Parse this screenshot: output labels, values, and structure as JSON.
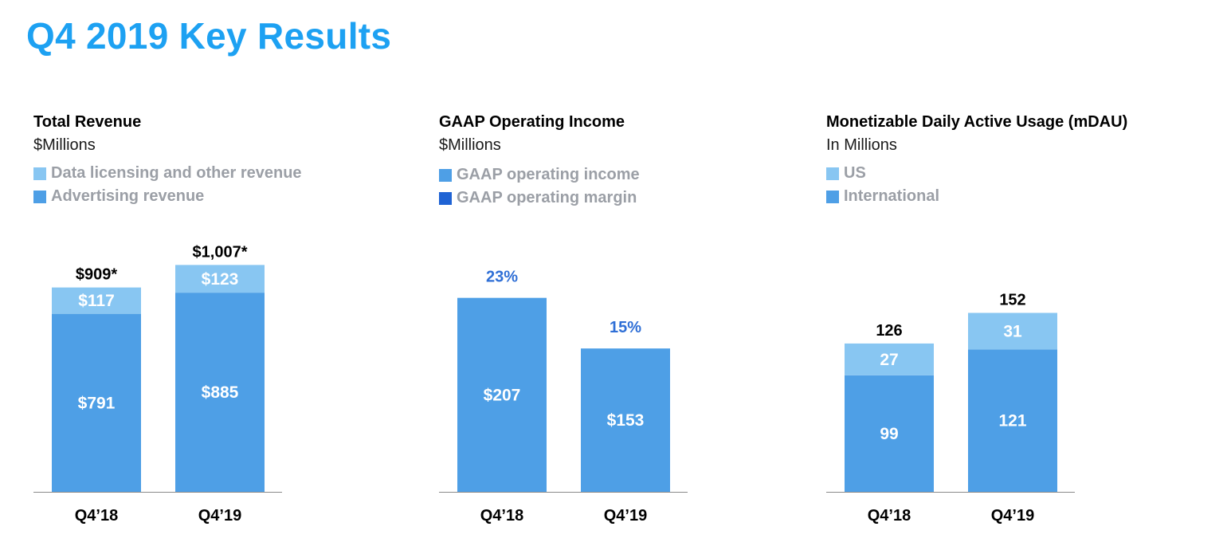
{
  "page": {
    "title": "Q4 2019 Key Results"
  },
  "colors": {
    "title": "#1da1f2",
    "light_bar": "#88c6f2",
    "main_bar": "#4e9fe6",
    "dark_legend": "#1f63d4",
    "margin_label": "#2f6fd6",
    "legend_text": "#9b9fa6"
  },
  "chart_data": [
    {
      "type": "bar",
      "stacked": true,
      "title": "Total Revenue",
      "subtitle": "$Millions",
      "categories": [
        "Q4’18",
        "Q4’19"
      ],
      "series": [
        {
          "name": "Advertising revenue",
          "values": [
            791,
            885
          ],
          "labels": [
            "$791",
            "$885"
          ],
          "color": "#4e9fe6"
        },
        {
          "name": "Data licensing and other revenue",
          "values": [
            117,
            123
          ],
          "labels": [
            "$117",
            "$123"
          ],
          "color": "#88c6f2"
        }
      ],
      "legend": [
        {
          "name": "Data licensing and other revenue",
          "color": "#88c6f2"
        },
        {
          "name": "Advertising revenue",
          "color": "#4e9fe6"
        }
      ],
      "totals": [
        "$909*",
        "$1,007*"
      ],
      "ylim": [
        0,
        1020
      ]
    },
    {
      "type": "bar",
      "stacked": false,
      "title": "GAAP Operating Income",
      "subtitle": "$Millions",
      "categories": [
        "Q4’18",
        "Q4’19"
      ],
      "series": [
        {
          "name": "GAAP operating income",
          "values": [
            207,
            153
          ],
          "labels": [
            "$207",
            "$153"
          ],
          "color": "#4e9fe6"
        }
      ],
      "legend": [
        {
          "name": "GAAP operating income",
          "color": "#4e9fe6"
        },
        {
          "name": "GAAP operating margin",
          "color": "#1f63d4"
        }
      ],
      "margins": [
        "23%",
        "15%"
      ],
      "ylim": [
        0,
        245
      ]
    },
    {
      "type": "bar",
      "stacked": true,
      "title": "Monetizable Daily Active Usage (mDAU)",
      "subtitle": "In Millions",
      "categories": [
        "Q4’18",
        "Q4’19"
      ],
      "series": [
        {
          "name": "International",
          "values": [
            99,
            121
          ],
          "labels": [
            "99",
            "121"
          ],
          "color": "#4e9fe6"
        },
        {
          "name": "US",
          "values": [
            27,
            31
          ],
          "labels": [
            "27",
            "31"
          ],
          "color": "#88c6f2"
        }
      ],
      "legend": [
        {
          "name": "US",
          "color": "#88c6f2"
        },
        {
          "name": "International",
          "color": "#4e9fe6"
        }
      ],
      "totals": [
        "126",
        "152"
      ],
      "ylim": [
        0,
        195
      ]
    }
  ]
}
